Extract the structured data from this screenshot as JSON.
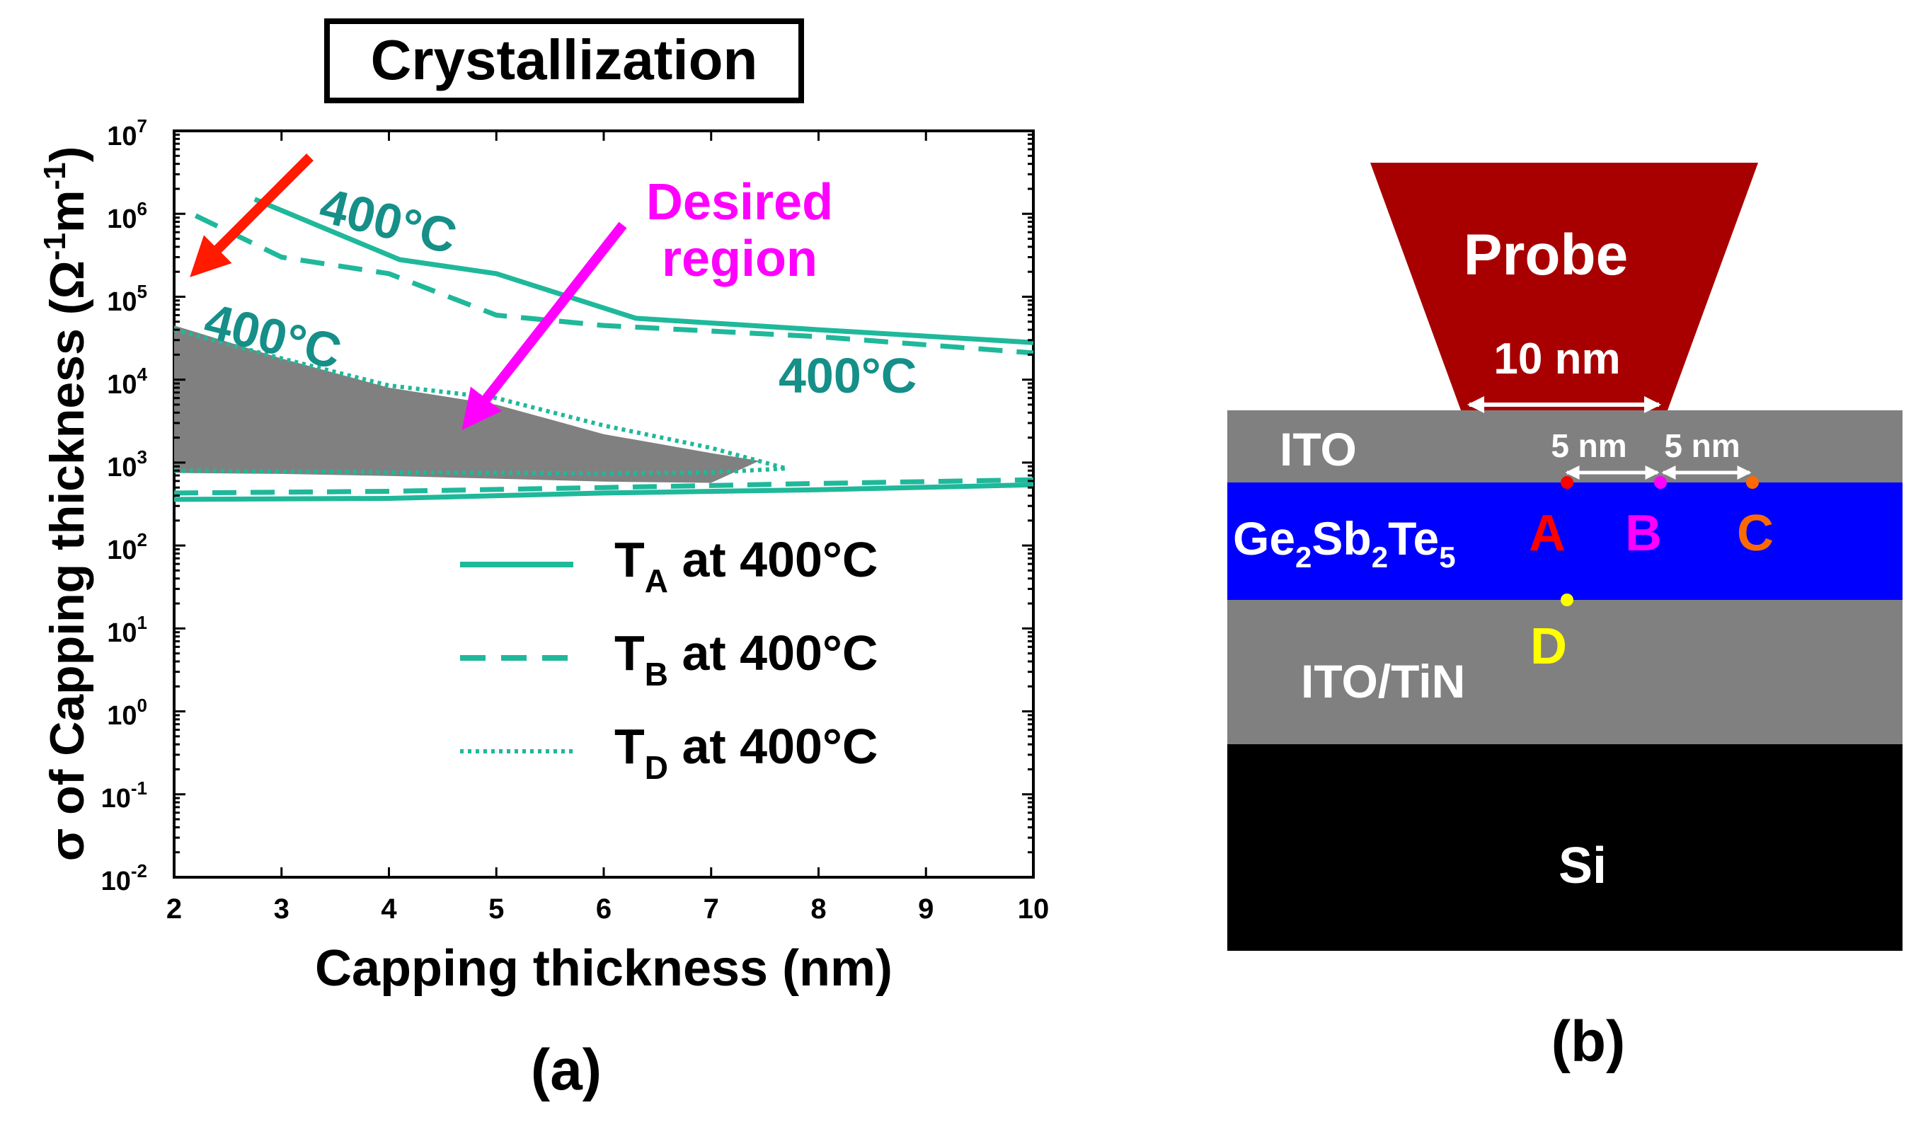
{
  "colors": {
    "teal": "#1fb89a",
    "teal_text": "#158f88",
    "region_gray": "#808080",
    "red_arrow": "#ff1a00",
    "magenta": "#ff00ff",
    "probe": "#a80000",
    "layer_gray": "#808080",
    "gst_blue": "#0000ff",
    "si_black": "#000000",
    "point_a": "#ff0000",
    "point_b": "#ff00ff",
    "point_c": "#ff6a00",
    "point_d": "#ffff00"
  },
  "chart_data": {
    "type": "line",
    "title": "Crystallization",
    "xlabel": "Capping thickness (nm)",
    "ylabel_parts": [
      "σ of Capping thickness (Ω",
      "-1",
      "m",
      "-1",
      ")"
    ],
    "xlim": [
      2,
      10
    ],
    "ylim_log10": [
      -2,
      7
    ],
    "x_ticks": [
      "2",
      "3",
      "4",
      "5",
      "6",
      "7",
      "8",
      "9",
      "10"
    ],
    "y_ticks": [
      {
        "exp": -2,
        "base": "10",
        "sup": "-2"
      },
      {
        "exp": -1,
        "base": "10",
        "sup": "-1"
      },
      {
        "exp": 0,
        "base": "10",
        "sup": "0"
      },
      {
        "exp": 1,
        "base": "10",
        "sup": "1"
      },
      {
        "exp": 2,
        "base": "10",
        "sup": "2"
      },
      {
        "exp": 3,
        "base": "10",
        "sup": "3"
      },
      {
        "exp": 4,
        "base": "10",
        "sup": "4"
      },
      {
        "exp": 5,
        "base": "10",
        "sup": "5"
      },
      {
        "exp": 6,
        "base": "10",
        "sup": "6"
      },
      {
        "exp": 7,
        "base": "10",
        "sup": "7"
      }
    ],
    "series": [
      {
        "name": "T_A at 400°C",
        "style": "solid",
        "group": "upper",
        "points": [
          [
            2.75,
            1500000
          ],
          [
            4.1,
            280000
          ],
          [
            5.0,
            190000
          ],
          [
            6.3,
            55000
          ],
          [
            8.0,
            40000
          ],
          [
            10.0,
            28000
          ]
        ]
      },
      {
        "name": "T_A at 400°C",
        "style": "solid",
        "group": "lower",
        "points": [
          [
            2.0,
            360
          ],
          [
            4.0,
            370
          ],
          [
            6.0,
            430
          ],
          [
            8.0,
            470
          ],
          [
            10.0,
            540
          ]
        ]
      },
      {
        "name": "T_B at 400°C",
        "style": "dashed",
        "group": "upper",
        "points": [
          [
            2.2,
            950000
          ],
          [
            3.0,
            300000
          ],
          [
            4.0,
            190000
          ],
          [
            5.0,
            60000
          ],
          [
            6.0,
            45000
          ],
          [
            8.0,
            33000
          ],
          [
            10.0,
            21000
          ]
        ]
      },
      {
        "name": "T_B at 400°C",
        "style": "dashed",
        "group": "lower",
        "points": [
          [
            2.0,
            430
          ],
          [
            4.0,
            450
          ],
          [
            6.0,
            500
          ],
          [
            8.0,
            560
          ],
          [
            10.0,
            620
          ]
        ]
      },
      {
        "name": "T_D at 400°C",
        "style": "dotted",
        "group": "upper",
        "points": [
          [
            2.0,
            40000
          ],
          [
            3.0,
            18000
          ],
          [
            4.0,
            8500
          ],
          [
            5.0,
            6000
          ],
          [
            6.0,
            2800
          ],
          [
            7.0,
            1500
          ],
          [
            7.7,
            850
          ]
        ]
      },
      {
        "name": "T_D at 400°C",
        "style": "dotted",
        "group": "lower",
        "points": [
          [
            2.0,
            800
          ],
          [
            3.0,
            780
          ],
          [
            4.0,
            760
          ],
          [
            5.0,
            750
          ],
          [
            6.0,
            740
          ],
          [
            7.0,
            760
          ],
          [
            7.7,
            850
          ]
        ]
      }
    ],
    "desired_region": {
      "upper": [
        [
          2.0,
          45000
        ],
        [
          3.0,
          18000
        ],
        [
          4.0,
          8000
        ],
        [
          5.0,
          5000
        ],
        [
          6.0,
          2200
        ],
        [
          7.0,
          1300
        ],
        [
          7.45,
          1050
        ]
      ],
      "lower": [
        [
          7.45,
          1050
        ],
        [
          7.0,
          570
        ],
        [
          6.0,
          590
        ],
        [
          5.0,
          640
        ],
        [
          4.0,
          690
        ],
        [
          3.0,
          730
        ],
        [
          2.0,
          750
        ]
      ]
    },
    "annotations": {
      "label_400_top": "400°C",
      "label_400_left": "400°C",
      "label_400_right": "400°C",
      "desired_line1": "Desired",
      "desired_line2": "region"
    },
    "legend": {
      "placement": "bottom-right",
      "entries": [
        {
          "pre": "T",
          "sub": "A",
          "post": " at 400°C",
          "style": "solid"
        },
        {
          "pre": "T",
          "sub": "B",
          "post": " at 400°C",
          "style": "dashed"
        },
        {
          "pre": "T",
          "sub": "D",
          "post": " at 400°C",
          "style": "dotted"
        }
      ]
    },
    "caption": "(a)"
  },
  "diagram": {
    "probe_label": "Probe",
    "probe_width_label": "10 nm",
    "spacing_label_1": "5 nm",
    "spacing_label_2": "5 nm",
    "layer_ito": "ITO",
    "layer_gst_parts": [
      "Ge",
      "2",
      "Sb",
      "2",
      "Te",
      "5"
    ],
    "layer_ito_tin": "ITO/TiN",
    "layer_si": "Si",
    "point_a": "A",
    "point_b": "B",
    "point_c": "C",
    "point_d": "D",
    "caption": "(b)"
  }
}
